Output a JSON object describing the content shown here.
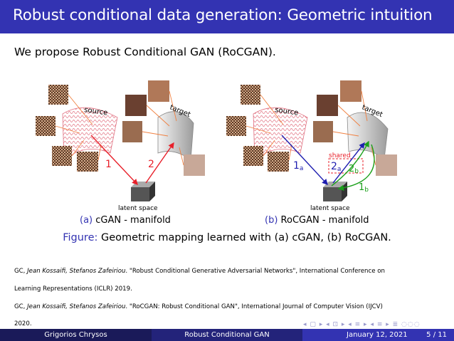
{
  "slide": {
    "title": "Robust conditional data generation: Geometric intuition",
    "intro": "We propose Robust Conditional GAN (RoCGAN)."
  },
  "figure": {
    "left": {
      "source_label": "source",
      "target_label": "target",
      "latent_label": "latent space",
      "arrow1": "1",
      "arrow2": "2"
    },
    "right": {
      "source_label": "source",
      "target_label": "target",
      "latent_label": "latent space",
      "shared_label": "shared",
      "arrow1": "1",
      "arrow1_sub": "a",
      "arrow2": "2",
      "arrow2_sub": "a",
      "arrow3": "2",
      "arrow3_sub": "b",
      "arrow4": "1",
      "arrow4_sub": "b"
    },
    "subcaption_a_tag": "(a)",
    "subcaption_a_text": "cGAN - manifold",
    "subcaption_b_tag": "(b)",
    "subcaption_b_text": "RoCGAN - manifold",
    "caption_label": "Figure:",
    "caption_text": "Geometric mapping learned with (a) cGAN, (b) RoCGAN."
  },
  "references": [
    {
      "authors": "GC, ",
      "names": "Jean Kossaifi, Stefanos Zafeiriou",
      "rest": ". \"Robust Conditional Generative Adversarial Networks\", International Conference on",
      "line2": "Learning Representations (ICLR) 2019."
    },
    {
      "authors": "GC, ",
      "names": "Jean Kossaifi, Stefanos Zafeiriou",
      "rest": ". \"RoCGAN: Robust Conditional GAN\", International Journal of Computer Vision (IJCV)",
      "line2": "2020."
    }
  ],
  "footer": {
    "author": "Grigorios Chrysos",
    "short_title": "Robust Conditional GAN",
    "date": "January 12, 2021",
    "page": "5 / 11"
  },
  "colors": {
    "accent": "#3333b2",
    "red_arrow": "#e8202a",
    "blue_arrow": "#1e1eb0",
    "green_arrow": "#1aa01a"
  }
}
